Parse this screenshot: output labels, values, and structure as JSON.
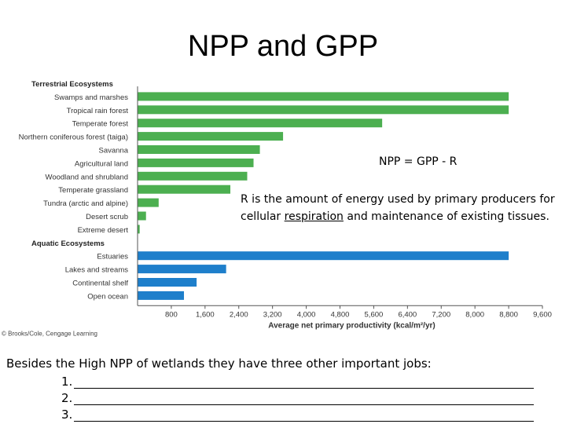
{
  "slide": {
    "title": "NPP and GPP",
    "formula": "NPP = GPP - R",
    "note_before": "R is the amount of energy used by primary producers for cellular ",
    "note_underlined": "respiration",
    "note_after": " and maintenance of existing tissues.",
    "bottom_intro": "Besides the High NPP of wetlands they have three other important jobs:",
    "blanks": [
      "1.",
      "2.",
      "3."
    ]
  },
  "chart_data": {
    "type": "bar",
    "orientation": "horizontal",
    "groups": [
      {
        "name": "Terrestrial Ecosystems",
        "color": "#4caf50",
        "categories": [
          "Swamps and marshes",
          "Tropical rain forest",
          "Temperate forest",
          "Northern coniferous forest (taiga)",
          "Savanna",
          "Agricultural land",
          "Woodland and shrubland",
          "Temperate grassland",
          "Tundra (arctic and alpine)",
          "Desert scrub",
          "Extreme desert"
        ],
        "values": [
          8800,
          8800,
          5800,
          3450,
          2900,
          2750,
          2600,
          2200,
          500,
          200,
          50
        ]
      },
      {
        "name": "Aquatic Ecosystems",
        "color": "#1e7fcb",
        "categories": [
          "Estuaries",
          "Lakes and streams",
          "Continental shelf",
          "Open ocean"
        ],
        "values": [
          8800,
          2100,
          1400,
          1100
        ]
      }
    ],
    "xlabel": "Average net primary productivity (kcal/m²/yr)",
    "xticks": [
      "800",
      "1,600",
      "2,400",
      "3,200",
      "4,000",
      "4,800",
      "5,600",
      "6,400",
      "7,200",
      "8,000",
      "8,800",
      "9,600"
    ],
    "xlim": [
      0,
      9600
    ],
    "credit": "© Brooks/Cole, Cengage Learning"
  }
}
